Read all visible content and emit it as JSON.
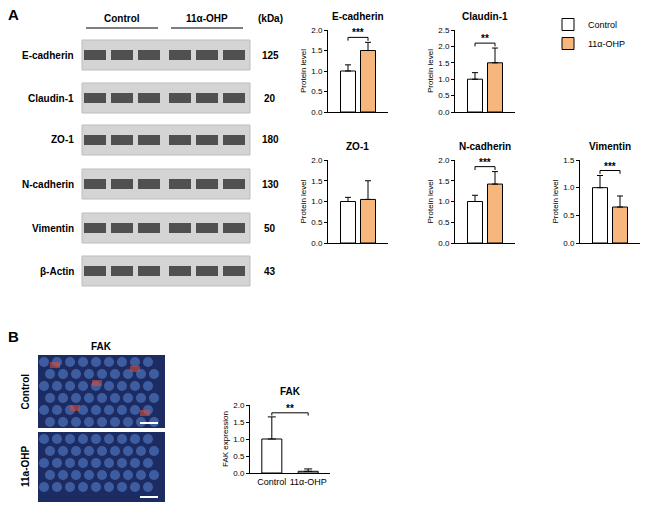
{
  "panel_A": {
    "letter": "A",
    "blot": {
      "groups": [
        "Control",
        "11α-OHP"
      ],
      "unit": "(kDa)",
      "rows": [
        {
          "label": "E-cadherin",
          "kda": 125
        },
        {
          "label": "Claudin-1",
          "kda": 20
        },
        {
          "label": "ZO-1",
          "kda": 180
        },
        {
          "label": "N-cadherin",
          "kda": 130
        },
        {
          "label": "Vimentin",
          "kda": 50
        },
        {
          "label": "β-Actin",
          "kda": 43
        }
      ]
    }
  },
  "panel_B": {
    "letter": "B",
    "image": {
      "title": "FAK",
      "rows": [
        "Control",
        "11a-OHP"
      ]
    }
  },
  "chart_data": [
    {
      "type": "bar",
      "title": "E-cadherin",
      "categories": [
        null
      ],
      "series": [
        {
          "name": "Control",
          "color": "#ffffff",
          "values": [
            1.0
          ],
          "errors": [
            0.15
          ]
        },
        {
          "name": "11α-OHP",
          "color": "#f7b77c",
          "values": [
            1.5
          ],
          "errors": [
            0.2
          ]
        }
      ],
      "y_label": "Protein level",
      "ylim": [
        0,
        2.0
      ],
      "yticks": [
        {
          "value": 0,
          "label": "0.0"
        },
        {
          "value": 0.5,
          "label": "0.5"
        },
        {
          "value": 1,
          "label": "1.0"
        },
        {
          "value": 1.5,
          "label": "1.5"
        },
        {
          "value": 2,
          "label": "2.0"
        }
      ],
      "significance": "***",
      "tick_labels": "y",
      "legend": "top right"
    },
    {
      "type": "bar",
      "title": "Claudin-1",
      "categories": [
        null
      ],
      "series": [
        {
          "name": "Control",
          "color": "#ffffff",
          "values": [
            1.0
          ],
          "errors": [
            0.2
          ]
        },
        {
          "name": "11α-OHP",
          "color": "#f7b77c",
          "values": [
            1.5
          ],
          "errors": [
            0.45
          ]
        }
      ],
      "y_label": "Protein level",
      "ylim": [
        0,
        2.5
      ],
      "yticks": [
        {
          "value": 0,
          "label": "0.0"
        },
        {
          "value": 0.5,
          "label": "0.5"
        },
        {
          "value": 1,
          "label": "1.0"
        },
        {
          "value": 1.5,
          "label": "1.5"
        },
        {
          "value": 2,
          "label": "2.0"
        },
        {
          "value": 2.5,
          "label": "2.5"
        }
      ],
      "significance": "**",
      "tick_labels": "y"
    },
    {
      "type": "bar",
      "title": "ZO-1",
      "categories": [
        null
      ],
      "series": [
        {
          "name": "Control",
          "color": "#ffffff",
          "values": [
            1.0
          ],
          "errors": [
            0.1
          ]
        },
        {
          "name": "11α-OHP",
          "color": "#f7b77c",
          "values": [
            1.05
          ],
          "errors": [
            0.45
          ]
        }
      ],
      "y_label": "Protein level",
      "ylim": [
        0,
        2.0
      ],
      "yticks": [
        {
          "value": 0,
          "label": "0.0"
        },
        {
          "value": 0.5,
          "label": "0.5"
        },
        {
          "value": 1,
          "label": "1.0"
        },
        {
          "value": 1.5,
          "label": "1.5"
        },
        {
          "value": 2,
          "label": "2.0"
        }
      ],
      "tick_labels": "y"
    },
    {
      "type": "bar",
      "title": "N-cadherin",
      "categories": [
        null
      ],
      "series": [
        {
          "name": "Control",
          "color": "#ffffff",
          "values": [
            1.0
          ],
          "errors": [
            0.15
          ]
        },
        {
          "name": "11α-OHP",
          "color": "#f7b77c",
          "values": [
            1.42
          ],
          "errors": [
            0.3
          ]
        }
      ],
      "y_label": "Protein level",
      "ylim": [
        0,
        2.0
      ],
      "yticks": [
        {
          "value": 0,
          "label": "0.0"
        },
        {
          "value": 0.5,
          "label": "0.5"
        },
        {
          "value": 1,
          "label": "1.0"
        },
        {
          "value": 1.5,
          "label": "1.5"
        },
        {
          "value": 2,
          "label": "2.0"
        }
      ],
      "significance": "***",
      "tick_labels": "y"
    },
    {
      "type": "bar",
      "title": "Vimentin",
      "categories": [
        null
      ],
      "series": [
        {
          "name": "Control",
          "color": "#ffffff",
          "values": [
            1.0
          ],
          "errors": [
            0.22
          ]
        },
        {
          "name": "11α-OHP",
          "color": "#f7b77c",
          "values": [
            0.65
          ],
          "errors": [
            0.2
          ]
        }
      ],
      "y_label": "Protein level",
      "ylim": [
        0,
        1.5
      ],
      "yticks": [
        {
          "value": 0,
          "label": "0.0"
        },
        {
          "value": 0.5,
          "label": "0.5"
        },
        {
          "value": 1,
          "label": "1.0"
        },
        {
          "value": 1.5,
          "label": "1.5"
        }
      ],
      "significance": "***",
      "tick_labels": "y"
    },
    {
      "type": "bar",
      "title": "FAK",
      "categories": [
        "Control",
        "11α-OHP"
      ],
      "values": [
        1.0,
        0.05
      ],
      "errors": [
        0.65,
        0.07
      ],
      "colors": [
        "#ffffff",
        "#ffffff"
      ],
      "y_label": "FAK expression",
      "ylim": [
        0,
        2.0
      ],
      "yticks": [
        {
          "value": 0,
          "label": "0.0"
        },
        {
          "value": 0.5,
          "label": "0.5"
        },
        {
          "value": 1,
          "label": "1.0"
        },
        {
          "value": 1.5,
          "label": "1.5"
        },
        {
          "value": 2,
          "label": "2.0"
        }
      ],
      "significance": "**"
    }
  ]
}
